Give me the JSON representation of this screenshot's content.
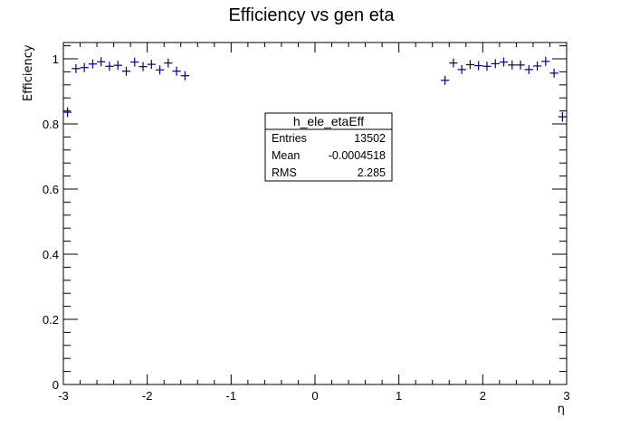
{
  "chart_data": {
    "type": "scatter",
    "title": "Efficiency vs gen eta",
    "xlabel": "η",
    "ylabel": "Efficiency",
    "xlim": [
      -3,
      3
    ],
    "ylim": [
      0,
      1.05
    ],
    "x_ticks": [
      -3,
      -2,
      -1,
      0,
      1,
      2,
      3
    ],
    "y_ticks": [
      0,
      0.2,
      0.4,
      0.6,
      0.8,
      1
    ],
    "x_tick_labels": [
      "-3",
      "-2",
      "-1",
      "0",
      "1",
      "2",
      "3"
    ],
    "y_tick_labels": [
      "0",
      "0.2",
      "0.4",
      "0.6",
      "0.8",
      "1"
    ],
    "marker": "cross",
    "marker_color": "#000080",
    "bin_width": 0.1,
    "series": [
      {
        "x": [
          -2.95,
          -2.85,
          -2.75,
          -2.65,
          -2.55,
          -2.45,
          -2.35,
          -2.25,
          -2.15,
          -2.05,
          -1.95,
          -1.85,
          -1.75,
          -1.65,
          -1.55,
          1.55,
          1.65,
          1.75,
          1.85,
          1.95,
          2.05,
          2.15,
          2.25,
          2.35,
          2.45,
          2.55,
          2.65,
          2.75,
          2.85,
          2.95
        ],
        "y": [
          0.836,
          0.97,
          0.973,
          0.984,
          0.991,
          0.977,
          0.98,
          0.962,
          0.99,
          0.976,
          0.983,
          0.966,
          0.987,
          0.962,
          0.948,
          0.934,
          0.987,
          0.967,
          0.982,
          0.979,
          0.977,
          0.985,
          0.99,
          0.981,
          0.981,
          0.967,
          0.978,
          0.992,
          0.956,
          0.822
        ],
        "yerr": [
          0.015,
          0.004,
          0.004,
          0.003,
          0.003,
          0.004,
          0.004,
          0.005,
          0.003,
          0.004,
          0.004,
          0.005,
          0.004,
          0.005,
          0.006,
          0.007,
          0.004,
          0.005,
          0.004,
          0.004,
          0.004,
          0.004,
          0.003,
          0.004,
          0.004,
          0.005,
          0.004,
          0.003,
          0.005,
          0.015
        ]
      }
    ]
  },
  "stats_box": {
    "name": "h_ele_etaEff",
    "entries_label": "Entries",
    "entries_value": "13502",
    "mean_label": "Mean",
    "mean_value": "-0.0004518",
    "rms_label": "RMS",
    "rms_value": "2.285"
  }
}
